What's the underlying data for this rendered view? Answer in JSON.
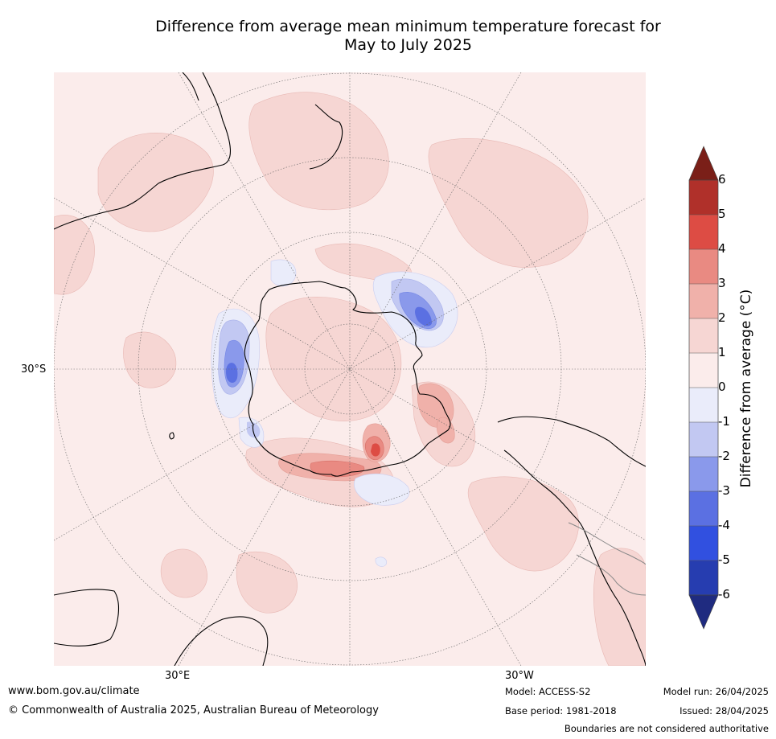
{
  "title": {
    "line1": "Difference from average mean minimum temperature forecast for",
    "line2": "May to July 2025"
  },
  "map": {
    "projection": "south-polar-stereographic",
    "lat_label": "30°S",
    "lon_labels": [
      "30°E",
      "30°W"
    ],
    "background_color": "#fbeceb"
  },
  "colorbar": {
    "label": "Difference from average (°C)",
    "ticks": [
      "6",
      "5",
      "4",
      "3",
      "2",
      "1",
      "0",
      "-1",
      "-2",
      "-3",
      "-4",
      "-5",
      "-6"
    ],
    "colors": {
      "over": "#7a1f18",
      "5_to_6": "#b0302a",
      "4_to_5": "#dd4c44",
      "3_to_4": "#e98a82",
      "2_to_3": "#f0b1aa",
      "1_to_2": "#f6d6d3",
      "0_to_1": "#fbeceb",
      "m1_to_0": "#eaecfa",
      "m2_to_m1": "#c2c8f2",
      "m3_to_m2": "#8a99eb",
      "m4_to_m3": "#5b70e2",
      "m5_to_m4": "#3150e0",
      "m6_to_m5": "#263db0",
      "under": "#1f2b80"
    }
  },
  "footer": {
    "website": "www.bom.gov.au/climate",
    "copyright": "© Commonwealth of Australia 2025, Australian Bureau of Meteorology",
    "model": "Model: ACCESS-S2",
    "base_period": "Base period: 1981-2018",
    "model_run": "Model run: 26/04/2025",
    "issued": "Issued: 28/04/2025",
    "disclaimer": "Boundaries are not considered authoritative"
  }
}
